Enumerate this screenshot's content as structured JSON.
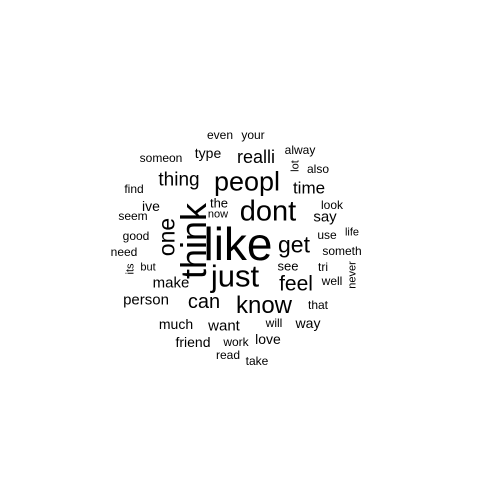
{
  "color": "#000000",
  "words": [
    {
      "text": "like",
      "freq": 100
    },
    {
      "text": "think",
      "freq": 72
    },
    {
      "text": "just",
      "freq": 60
    },
    {
      "text": "dont",
      "freq": 56
    },
    {
      "text": "peopl",
      "freq": 52
    },
    {
      "text": "know",
      "freq": 46
    },
    {
      "text": "one",
      "freq": 44
    },
    {
      "text": "get",
      "freq": 44
    },
    {
      "text": "feel",
      "freq": 40
    },
    {
      "text": "can",
      "freq": 38
    },
    {
      "text": "thing",
      "freq": 36
    },
    {
      "text": "realli",
      "freq": 34
    },
    {
      "text": "time",
      "freq": 32
    },
    {
      "text": "say",
      "freq": 29
    },
    {
      "text": "make",
      "freq": 29
    },
    {
      "text": "person",
      "freq": 28
    },
    {
      "text": "want",
      "freq": 28
    },
    {
      "text": "much",
      "freq": 27
    },
    {
      "text": "type",
      "freq": 27
    },
    {
      "text": "way",
      "freq": 27
    },
    {
      "text": "love",
      "freq": 27
    },
    {
      "text": "friend",
      "freq": 26
    },
    {
      "text": "ive",
      "freq": 26
    },
    {
      "text": "the",
      "freq": 24
    },
    {
      "text": "see",
      "freq": 23
    },
    {
      "text": "good",
      "freq": 22
    },
    {
      "text": "also",
      "freq": 21
    },
    {
      "text": "use",
      "freq": 21
    },
    {
      "text": "tri",
      "freq": 21
    },
    {
      "text": "someth",
      "freq": 21
    },
    {
      "text": "will",
      "freq": 21
    },
    {
      "text": "that",
      "freq": 21
    },
    {
      "text": "even",
      "freq": 20
    },
    {
      "text": "your",
      "freq": 20
    },
    {
      "text": "someon",
      "freq": 20
    },
    {
      "text": "alway",
      "freq": 20
    },
    {
      "text": "find",
      "freq": 20
    },
    {
      "text": "seem",
      "freq": 20
    },
    {
      "text": "need",
      "freq": 20
    },
    {
      "text": "look",
      "freq": 20
    },
    {
      "text": "well",
      "freq": 20
    },
    {
      "text": "work",
      "freq": 20
    },
    {
      "text": "read",
      "freq": 19
    },
    {
      "text": "take",
      "freq": 19
    },
    {
      "text": "now",
      "freq": 19
    },
    {
      "text": "life",
      "freq": 18
    },
    {
      "text": "lot",
      "freq": 18
    },
    {
      "text": "but",
      "freq": 18
    },
    {
      "text": "its",
      "freq": 18
    },
    {
      "text": "never",
      "freq": 18
    }
  ]
}
